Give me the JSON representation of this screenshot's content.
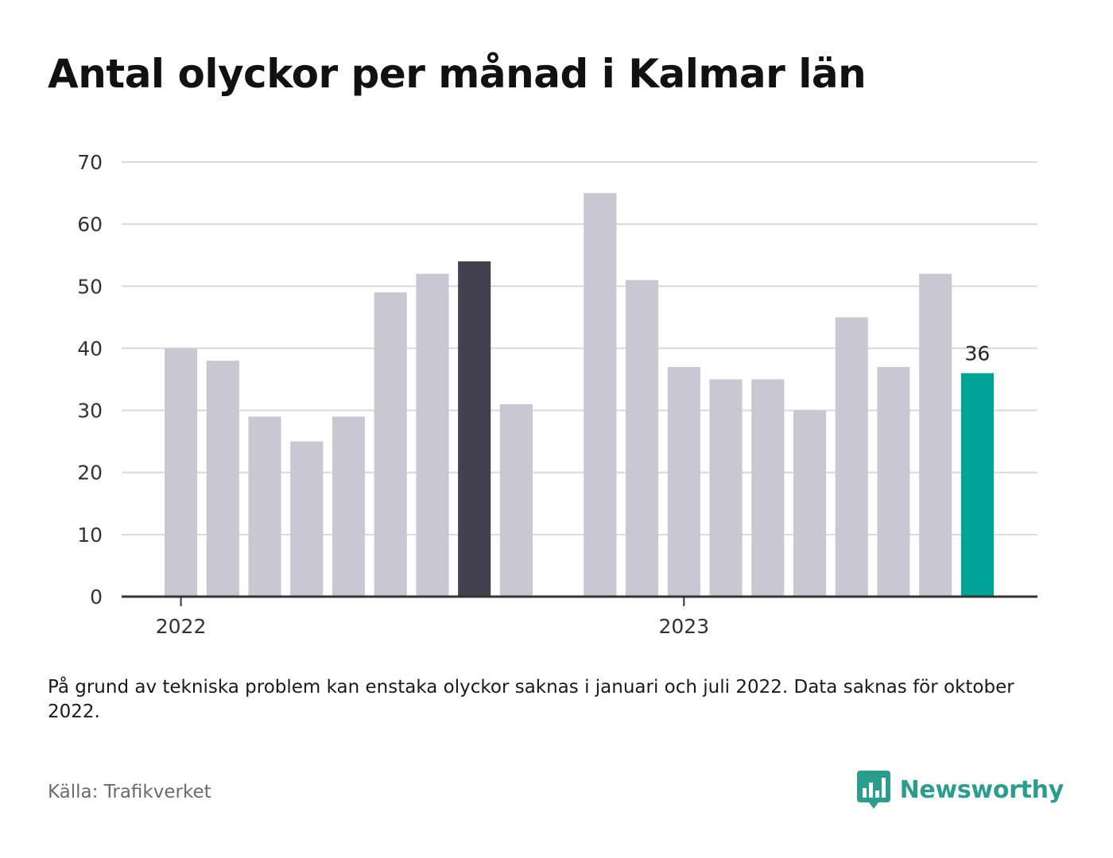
{
  "title": "Antal olyckor per månad i Kalmar län",
  "note": "På grund av tekniska problem kan enstaka olyckor saknas i januari och juli 2022. Data saknas för oktober 2022.",
  "source": "Källa: Trafikverket",
  "brand": {
    "name": "Newsworthy",
    "icon": "bar-chart-speech-bubble-icon"
  },
  "colors": {
    "bar": "#c9c8d2",
    "highlight_dark": "#43414f",
    "highlight_latest": "#00a398",
    "brand": "#2a9d8f",
    "grid": "#d9d9d9",
    "axis": "#333333"
  },
  "chart_data": {
    "type": "bar",
    "title": "Antal olyckor per månad i Kalmar län",
    "xlabel": "",
    "ylabel": "",
    "ylim": [
      0,
      70
    ],
    "yticks": [
      0,
      10,
      20,
      30,
      40,
      50,
      60,
      70
    ],
    "grid": true,
    "x_tick_labels": [
      {
        "label": "2022",
        "at": "2022-01"
      },
      {
        "label": "2023",
        "at": "2023-01"
      }
    ],
    "bars": [
      {
        "month": "2022-01",
        "value": 40
      },
      {
        "month": "2022-02",
        "value": 38
      },
      {
        "month": "2022-03",
        "value": 29
      },
      {
        "month": "2022-04",
        "value": 25
      },
      {
        "month": "2022-05",
        "value": 29
      },
      {
        "month": "2022-06",
        "value": 49
      },
      {
        "month": "2022-07",
        "value": 52
      },
      {
        "month": "2022-08",
        "value": 54,
        "highlight": "dark"
      },
      {
        "month": "2022-09",
        "value": 31
      },
      {
        "month": "2022-11",
        "value": 65
      },
      {
        "month": "2022-12",
        "value": 51
      },
      {
        "month": "2023-01",
        "value": 37
      },
      {
        "month": "2023-02",
        "value": 35
      },
      {
        "month": "2023-03",
        "value": 35
      },
      {
        "month": "2023-04",
        "value": 30
      },
      {
        "month": "2023-05",
        "value": 45
      },
      {
        "month": "2023-06",
        "value": 37
      },
      {
        "month": "2023-07",
        "value": 52
      },
      {
        "month": "2023-08",
        "value": 36,
        "highlight": "latest",
        "label": "36"
      }
    ]
  }
}
